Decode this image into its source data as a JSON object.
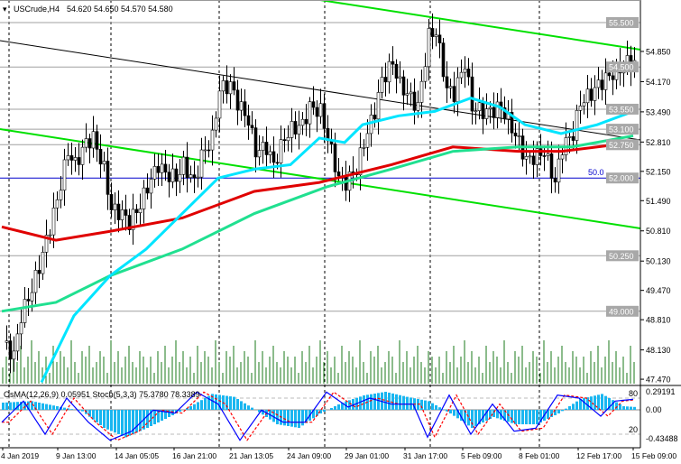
{
  "header": {
    "symbol": "USCrude,H4",
    "ohlc": "54.620 54.650 54.570 54.580"
  },
  "indicator_header": "OsMA(12,26,9) 0.05951  Stoch(5,3,3) 75.3780 78.3389",
  "chart_data": {
    "type": "candlestick",
    "timeframe": "H4",
    "ylim": [
      47.3,
      56.0
    ],
    "price_ticks": [
      "54.850",
      "54.170",
      "53.490",
      "52.810",
      "52.150",
      "51.490",
      "50.810",
      "50.130",
      "49.470",
      "48.810",
      "48.130",
      "47.470"
    ],
    "level_tags": [
      "55.500",
      "54.500",
      "53.550",
      "53.100",
      "52.750",
      "52.000",
      "50.250",
      "49.000"
    ],
    "level_50_label": "50.0",
    "x_ticks": [
      "4 Jan 2019",
      "9 Jan 13:00",
      "14 Jan 05:05",
      "16 Jan 21:00",
      "21 Jan 13:05",
      "24 Jan 09:00",
      "29 Jan 01:00",
      "31 Jan 17:00",
      "5 Feb 09:00",
      "8 Feb 01:00",
      "12 Feb 17:00",
      "15 Feb 09:00"
    ],
    "close_by_bar": [
      [
        0,
        48.3
      ],
      [
        3,
        48.0
      ],
      [
        5,
        48.9
      ],
      [
        8,
        49.5
      ],
      [
        10,
        50.0
      ],
      [
        13,
        50.9
      ],
      [
        15,
        51.5
      ],
      [
        18,
        52.6
      ],
      [
        20,
        52.3
      ],
      [
        23,
        52.8
      ],
      [
        25,
        52.9
      ],
      [
        28,
        52.2
      ],
      [
        30,
        51.3
      ],
      [
        33,
        51.2
      ],
      [
        35,
        51.0
      ],
      [
        38,
        51.4
      ],
      [
        40,
        51.8
      ],
      [
        43,
        52.3
      ],
      [
        45,
        52.1
      ],
      [
        48,
        52.0
      ],
      [
        50,
        52.3
      ],
      [
        53,
        51.9
      ],
      [
        55,
        52.5
      ],
      [
        58,
        52.9
      ],
      [
        60,
        54.0
      ],
      [
        63,
        54.1
      ],
      [
        65,
        53.7
      ],
      [
        68,
        53.3
      ],
      [
        70,
        52.6
      ],
      [
        73,
        52.7
      ],
      [
        75,
        52.3
      ],
      [
        78,
        52.9
      ],
      [
        80,
        53.1
      ],
      [
        83,
        53.2
      ],
      [
        85,
        53.6
      ],
      [
        88,
        53.5
      ],
      [
        90,
        52.9
      ],
      [
        93,
        52.0
      ],
      [
        95,
        51.9
      ],
      [
        98,
        52.2
      ],
      [
        100,
        52.8
      ],
      [
        103,
        53.5
      ],
      [
        105,
        54.2
      ],
      [
        108,
        54.6
      ],
      [
        110,
        54.1
      ],
      [
        113,
        53.8
      ],
      [
        115,
        53.6
      ],
      [
        118,
        55.2
      ],
      [
        120,
        55.3
      ],
      [
        123,
        54.0
      ],
      [
        125,
        53.9
      ],
      [
        128,
        54.6
      ],
      [
        130,
        53.6
      ],
      [
        133,
        53.5
      ],
      [
        135,
        53.5
      ],
      [
        138,
        53.6
      ],
      [
        140,
        53.3
      ],
      [
        143,
        52.8
      ],
      [
        145,
        52.4
      ],
      [
        148,
        52.5
      ],
      [
        150,
        52.6
      ],
      [
        153,
        51.9
      ],
      [
        155,
        52.7
      ],
      [
        158,
        53.0
      ],
      [
        160,
        53.7
      ],
      [
        163,
        53.9
      ],
      [
        165,
        54.1
      ],
      [
        168,
        54.3
      ],
      [
        170,
        54.4
      ],
      [
        173,
        54.6
      ],
      [
        175,
        54.58
      ]
    ],
    "ma_fast_cyan": [
      [
        11,
        47.4
      ],
      [
        20,
        48.9
      ],
      [
        30,
        49.8
      ],
      [
        40,
        50.4
      ],
      [
        50,
        51.2
      ],
      [
        60,
        52.0
      ],
      [
        70,
        52.2
      ],
      [
        80,
        52.3
      ],
      [
        88,
        52.9
      ],
      [
        95,
        52.8
      ],
      [
        100,
        53.2
      ],
      [
        110,
        53.4
      ],
      [
        120,
        53.5
      ],
      [
        130,
        53.8
      ],
      [
        138,
        53.6
      ],
      [
        145,
        53.2
      ],
      [
        155,
        53.0
      ],
      [
        165,
        53.2
      ],
      [
        175,
        53.5
      ]
    ],
    "ma_slow_red": [
      [
        0,
        50.9
      ],
      [
        15,
        50.6
      ],
      [
        30,
        50.8
      ],
      [
        50,
        51.1
      ],
      [
        70,
        51.7
      ],
      [
        88,
        51.9
      ],
      [
        108,
        52.3
      ],
      [
        125,
        52.7
      ],
      [
        143,
        52.6
      ],
      [
        155,
        52.6
      ],
      [
        175,
        52.8
      ]
    ],
    "ma_mid_green": [
      [
        0,
        49.0
      ],
      [
        15,
        49.2
      ],
      [
        30,
        49.8
      ],
      [
        50,
        50.4
      ],
      [
        70,
        51.2
      ],
      [
        90,
        51.8
      ],
      [
        108,
        52.2
      ],
      [
        125,
        52.6
      ],
      [
        143,
        52.7
      ],
      [
        158,
        52.7
      ],
      [
        175,
        52.95
      ]
    ],
    "volume_pattern": [
      3,
      5,
      2,
      6,
      4,
      7,
      3,
      5,
      8,
      4,
      6,
      3,
      5,
      2,
      7,
      4,
      6,
      5,
      3,
      8,
      4,
      2,
      6,
      5,
      7,
      3,
      4,
      6,
      5,
      2,
      8,
      4,
      6,
      3,
      5,
      7,
      4,
      3,
      6,
      5
    ],
    "osma_ylim": [
      -0.43488,
      0.29191
    ],
    "osma_ticks": [
      "0.29191",
      "0.00",
      "-0.43488"
    ],
    "stoch_levels": [
      "80",
      "20"
    ],
    "osma_by_bar": [
      [
        0,
        0.1
      ],
      [
        8,
        0.12
      ],
      [
        15,
        0.05
      ],
      [
        22,
        -0.02
      ],
      [
        28,
        -0.25
      ],
      [
        34,
        -0.38
      ],
      [
        40,
        -0.25
      ],
      [
        46,
        -0.1
      ],
      [
        52,
        0.05
      ],
      [
        58,
        0.22
      ],
      [
        64,
        0.18
      ],
      [
        70,
        0.0
      ],
      [
        76,
        -0.2
      ],
      [
        82,
        -0.25
      ],
      [
        88,
        -0.05
      ],
      [
        94,
        0.1
      ],
      [
        100,
        0.2
      ],
      [
        106,
        0.25
      ],
      [
        112,
        0.18
      ],
      [
        118,
        0.12
      ],
      [
        124,
        -0.05
      ],
      [
        130,
        -0.25
      ],
      [
        136,
        -0.1
      ],
      [
        142,
        -0.2
      ],
      [
        148,
        -0.2
      ],
      [
        154,
        -0.05
      ],
      [
        160,
        0.15
      ],
      [
        166,
        0.22
      ],
      [
        172,
        0.05
      ],
      [
        175,
        0.04
      ]
    ],
    "stoch_main_by_bar": [
      [
        0,
        40
      ],
      [
        6,
        75
      ],
      [
        12,
        20
      ],
      [
        18,
        80
      ],
      [
        24,
        40
      ],
      [
        30,
        10
      ],
      [
        36,
        25
      ],
      [
        42,
        60
      ],
      [
        48,
        55
      ],
      [
        54,
        90
      ],
      [
        60,
        70
      ],
      [
        66,
        10
      ],
      [
        72,
        60
      ],
      [
        78,
        40
      ],
      [
        84,
        40
      ],
      [
        90,
        90
      ],
      [
        96,
        65
      ],
      [
        102,
        80
      ],
      [
        108,
        70
      ],
      [
        114,
        70
      ],
      [
        118,
        15
      ],
      [
        124,
        85
      ],
      [
        130,
        20
      ],
      [
        136,
        70
      ],
      [
        142,
        25
      ],
      [
        148,
        30
      ],
      [
        154,
        85
      ],
      [
        160,
        80
      ],
      [
        166,
        50
      ],
      [
        170,
        75
      ],
      [
        175,
        78
      ]
    ],
    "colors": {
      "bull_bear_candle": "#000000",
      "ma_fast": "#00e5ff",
      "ma_slow": "#e00000",
      "ma_mid": "#20e090",
      "trendline": "#00e000",
      "level_line": "#a0a0a0",
      "level_50": "#0000cc",
      "volume": "#1a7a1a",
      "osma": "#19b6f0",
      "stoch_main": "#0000ff",
      "stoch_signal": "#ff0000"
    }
  }
}
